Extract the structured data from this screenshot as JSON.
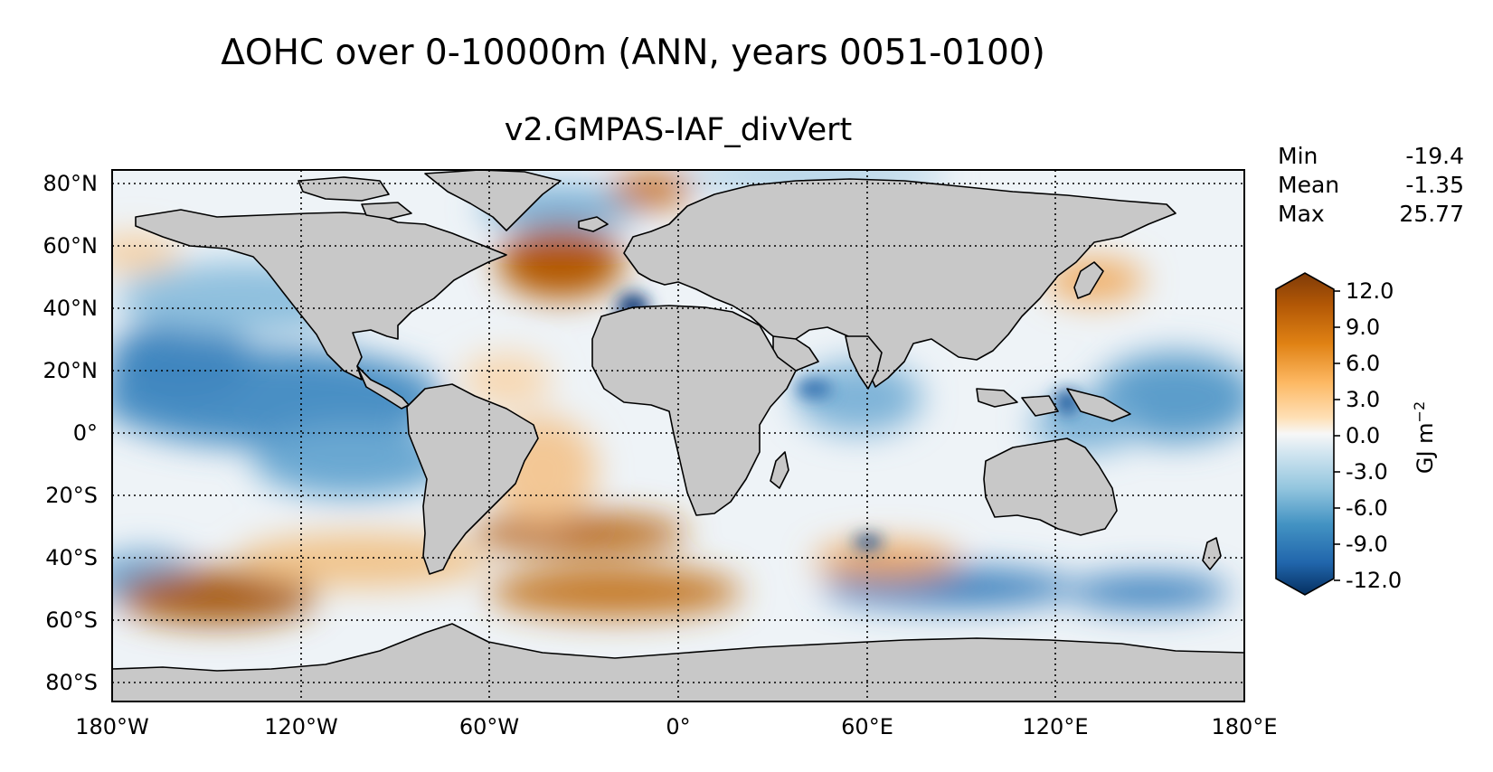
{
  "title": "ΔOHC over 0-10000m (ANN, years 0051-0100)",
  "subtitle": "v2.GMPAS-IAF_divVert",
  "stats": [
    {
      "name": "Min",
      "value": "-19.4"
    },
    {
      "name": "Mean",
      "value": "-1.35"
    },
    {
      "name": "Max",
      "value": "25.77"
    }
  ],
  "lat_labels": [
    "80°N",
    "60°N",
    "40°N",
    "20°N",
    "0°",
    "20°S",
    "40°S",
    "60°S",
    "80°S"
  ],
  "lon_labels": [
    "180°W",
    "120°W",
    "60°W",
    "0°",
    "60°E",
    "120°E",
    "180°E"
  ],
  "colorbar": {
    "ticks": [
      "12.0",
      "9.0",
      "6.0",
      "3.0",
      "0.0",
      "-3.0",
      "-6.0",
      "-9.0",
      "-12.0"
    ],
    "tick_values": [
      12,
      9,
      6,
      3,
      0,
      -3,
      -6,
      -9,
      -12
    ],
    "range": [
      -12,
      12
    ],
    "label": "GJ m",
    "label_exponent": "−2",
    "colors_top_to_bottom": [
      "#7f3b08",
      "#b35806",
      "#e08214",
      "#fdb863",
      "#fee0b6",
      "#f7f7f7",
      "#d1e5f0",
      "#92c5de",
      "#4393c3",
      "#2166ac",
      "#053061"
    ]
  },
  "land_color": "#c8c8c8"
}
